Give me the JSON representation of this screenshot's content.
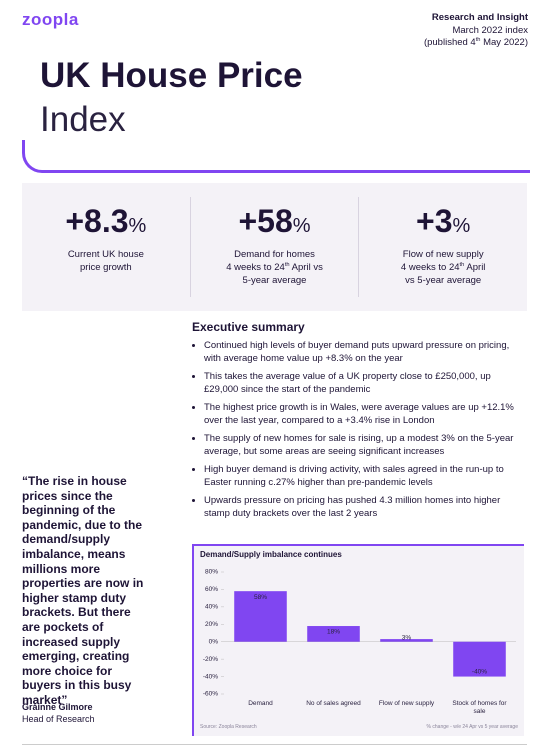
{
  "header": {
    "logo": "zoopla",
    "kicker": "Research and Insight",
    "index": "March 2022 index",
    "published": {
      "before": "(published 4",
      "sup": "th",
      "after": " May 2022)"
    },
    "title_bold": "UK House Price",
    "title_light": "Index"
  },
  "stats": [
    {
      "number": "+8.3",
      "unit": "%",
      "lines": [
        {
          "before": "Current UK house"
        },
        {
          "before": "price growth"
        }
      ]
    },
    {
      "number": "+58",
      "unit": "%",
      "lines": [
        {
          "before": "Demand for homes"
        },
        {
          "before": "4 weeks to 24",
          "sup": "th",
          "after": " April vs"
        },
        {
          "before": "5-year average"
        }
      ]
    },
    {
      "number": "+3",
      "unit": "%",
      "lines": [
        {
          "before": "Flow of new supply"
        },
        {
          "before": "4 weeks to 24",
          "sup": "th",
          "after": " April"
        },
        {
          "before": "vs 5-year average"
        }
      ]
    }
  ],
  "summary": {
    "heading": "Executive summary",
    "bullets": [
      "Continued high levels of buyer demand puts upward pressure on pricing, with average home value up +8.3% on the year",
      "This takes the average value of a UK property close to £250,000, up £29,000 since the start of the pandemic",
      "The highest price growth is in Wales, were average values are up +12.1% over the last year, compared to a +3.4% rise in London",
      "The supply of new homes for sale is rising, up a modest 3% on the 5-year average, but some areas are seeing significant increases",
      "High buyer demand is driving activity, with sales agreed in the run-up to Easter running c.27% higher than pre-pandemic levels",
      "Upwards pressure on pricing has pushed 4.3 million homes into higher stamp duty brackets over the last 2 years"
    ]
  },
  "quote": {
    "text": "“The rise in house prices since the beginning of the pandemic, due to the demand/supply imbalance, means millions more properties are now in higher stamp duty brackets. But there are pockets of increased supply emerging, creating more choice for buyers in this busy market”",
    "name": "Gráinne Gilmore",
    "role": "Head of Research"
  },
  "chart_data": {
    "type": "bar",
    "title": "Demand/Supply imbalance continues",
    "categories": [
      "Demand",
      "No of sales agreed",
      "Flow of new supply",
      "Stock of homes for sale"
    ],
    "values": [
      58,
      18,
      3,
      -40
    ],
    "value_labels": [
      "58%",
      "18%",
      "3%",
      "-40%"
    ],
    "color": "#8046f1",
    "ylim": [
      -60,
      80
    ],
    "yticks": [
      {
        "value": 80,
        "label": "80%"
      },
      {
        "value": 60,
        "label": "60%"
      },
      {
        "value": 40,
        "label": "40%"
      },
      {
        "value": 20,
        "label": "20%"
      },
      {
        "value": 0,
        "label": "0%"
      },
      {
        "value": -20,
        "label": "-20%"
      },
      {
        "value": -40,
        "label": "-40%"
      },
      {
        "value": -60,
        "label": "-60%"
      }
    ],
    "source": "Source: Zoopla Research",
    "note": "% change - w/e 24 Apr vs 5 year average"
  }
}
